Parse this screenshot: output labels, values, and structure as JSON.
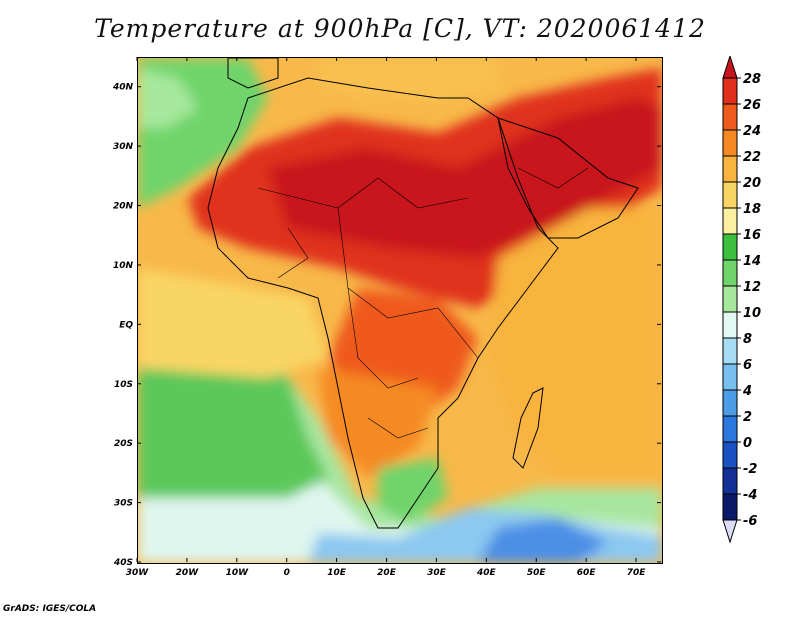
{
  "title": "Temperature at 900hPa [C], VT: 2020061412",
  "footer": "GrADS: IGES/COLA",
  "lat_labels": [
    "40N",
    "30N",
    "20N",
    "10N",
    "EQ",
    "10S",
    "20S",
    "30S",
    "40S"
  ],
  "lon_labels": [
    "30W",
    "20W",
    "10W",
    "0",
    "10E",
    "20E",
    "30E",
    "40E",
    "50E",
    "60E",
    "70E"
  ],
  "legend": {
    "labels": [
      "28",
      "26",
      "24",
      "22",
      "20",
      "18",
      "16",
      "14",
      "12",
      "10",
      "8",
      "6",
      "4",
      "2",
      "0",
      "-2",
      "-4",
      "-6"
    ],
    "colors": [
      "#c8141e",
      "#e0301c",
      "#ef5a1e",
      "#f58a24",
      "#f8b43c",
      "#f9d565",
      "#fbf0a0",
      "#3cbf3c",
      "#6fd46a",
      "#a6e89c",
      "#e2f8f2",
      "#a6dcf4",
      "#78bff0",
      "#4c9de6",
      "#2a78dc",
      "#1a52c4",
      "#133096",
      "#0a1a68"
    ],
    "top_triangle_color": "#c8141e",
    "bottom_triangle_color": "#dcdcf6"
  },
  "map": {
    "lon_range": [
      -30,
      75
    ],
    "lat_range": [
      -40,
      45
    ],
    "field": "Temperature at 900hPa",
    "units": "C"
  }
}
